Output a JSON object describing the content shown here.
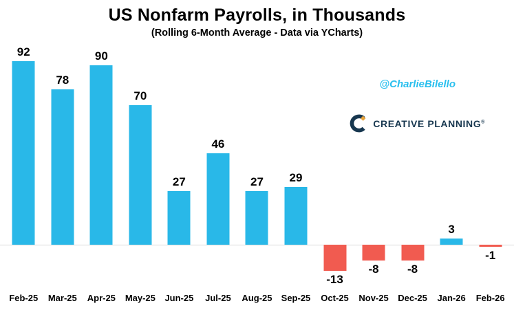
{
  "title": "US Nonfarm Payrolls, in Thousands",
  "subtitle": "(Rolling 6-Month Average - Data via YCharts)",
  "watermark": "@CharlieBilello",
  "logo": {
    "text": "CREATIVE PLANNING",
    "registered": "®"
  },
  "colors": {
    "positive": "#29b8e8",
    "negative": "#f15b50",
    "watermark": "#29bfee",
    "logo_navy": "#17374f",
    "logo_gold": "#e8a33b",
    "zero_line": "#d9d9d9"
  },
  "chart_data": {
    "type": "bar",
    "categories": [
      "Feb-25",
      "Mar-25",
      "Apr-25",
      "May-25",
      "Jun-25",
      "Jul-25",
      "Aug-25",
      "Sep-25",
      "Oct-25",
      "Nov-25",
      "Dec-25",
      "Jan-26",
      "Feb-26"
    ],
    "values": [
      92,
      78,
      90,
      70,
      27,
      46,
      27,
      29,
      -13,
      -8,
      -8,
      3,
      -1
    ],
    "title": "US Nonfarm Payrolls, in Thousands",
    "subtitle": "(Rolling 6-Month Average - Data via YCharts)",
    "xlabel": "",
    "ylabel": "",
    "ylim": [
      -20,
      100
    ],
    "grid": false,
    "legend": "none",
    "value_labels": "shown above positive bars, below negative bars",
    "bar_color_positive": "#29b8e8",
    "bar_color_negative": "#f15b50"
  }
}
